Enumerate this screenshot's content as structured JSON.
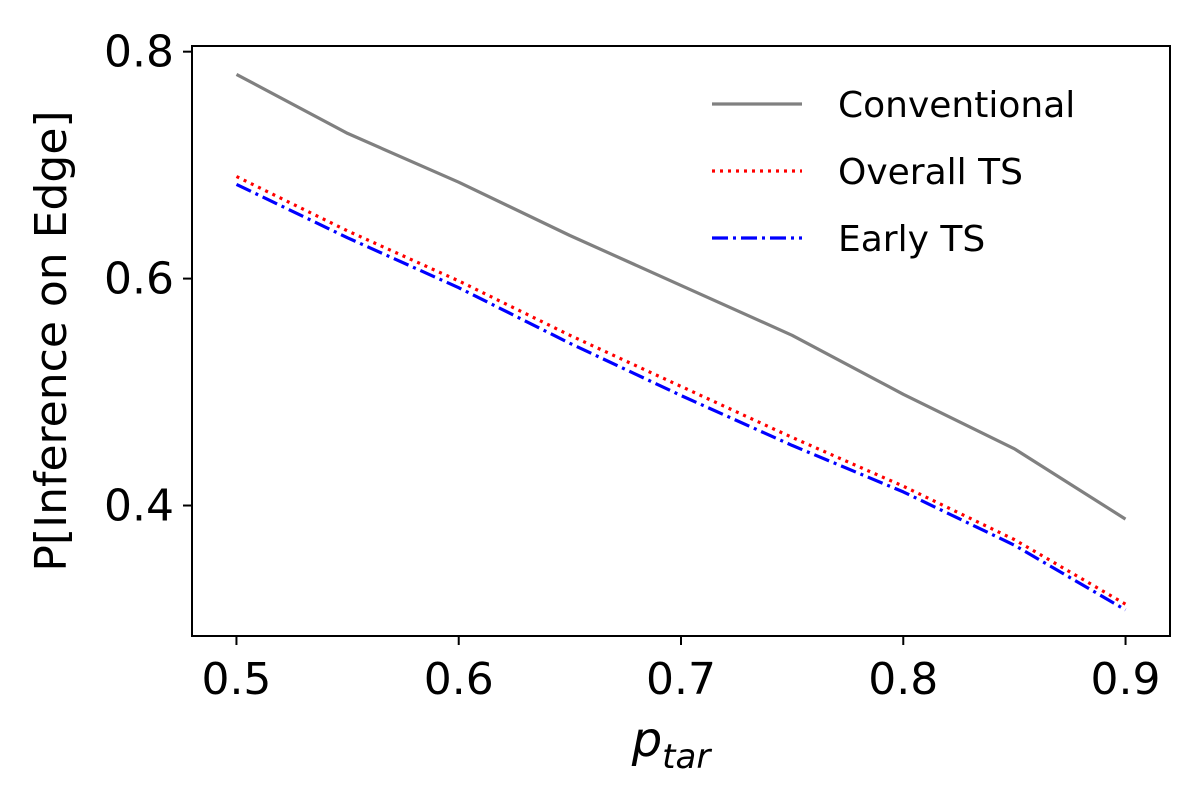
{
  "chart_data": {
    "type": "line",
    "xlabel": "p",
    "xlabel_subscript": "tar",
    "ylabel": "P[Inference on Edge]",
    "xlim": [
      0.48,
      0.92
    ],
    "ylim": [
      0.285,
      0.805
    ],
    "xticks": [
      {
        "value": 0.5,
        "label": "0.5"
      },
      {
        "value": 0.6,
        "label": "0.6"
      },
      {
        "value": 0.7,
        "label": "0.7"
      },
      {
        "value": 0.8,
        "label": "0.8"
      },
      {
        "value": 0.9,
        "label": "0.9"
      }
    ],
    "yticks": [
      {
        "value": 0.4,
        "label": "0.4"
      },
      {
        "value": 0.6,
        "label": "0.6"
      },
      {
        "value": 0.8,
        "label": "0.8"
      }
    ],
    "grid": false,
    "legend_position": "top-right",
    "x": [
      0.5,
      0.55,
      0.6,
      0.65,
      0.7,
      0.75,
      0.8,
      0.85,
      0.9
    ],
    "series": [
      {
        "name": "Conventional",
        "color": "#808080",
        "dash": "solid",
        "values": [
          0.78,
          0.728,
          0.685,
          0.638,
          0.594,
          0.55,
          0.498,
          0.45,
          0.388
        ]
      },
      {
        "name": "Overall TS",
        "color": "#ff0000",
        "dash": "dotted",
        "values": [
          0.69,
          0.642,
          0.598,
          0.55,
          0.505,
          0.46,
          0.417,
          0.37,
          0.313
        ]
      },
      {
        "name": "Early TS",
        "color": "#0000ff",
        "dash": "dashdot",
        "values": [
          0.683,
          0.636,
          0.592,
          0.543,
          0.497,
          0.453,
          0.412,
          0.365,
          0.308
        ]
      }
    ]
  }
}
